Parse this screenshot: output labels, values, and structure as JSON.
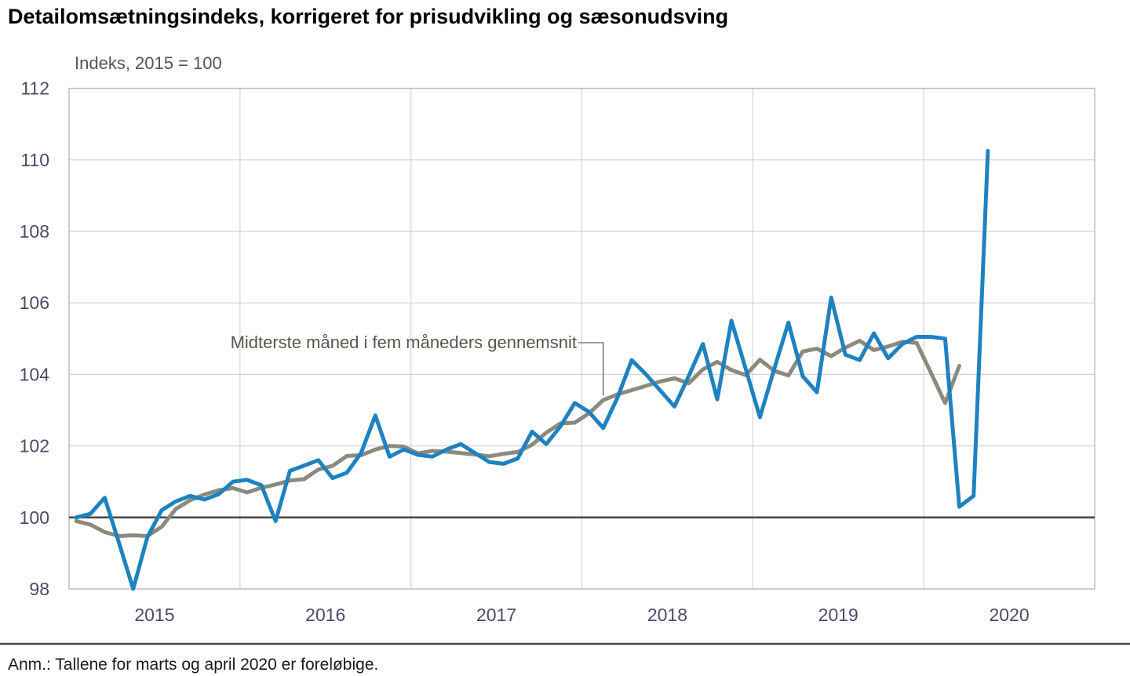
{
  "title": "Detailomsætningsindeks, korrigeret for prisudvikling og sæsonudsving",
  "y_axis_label": "Indeks, 2015 = 100",
  "annotation": {
    "label": "Midterste måned i fem måneders gennemsnit"
  },
  "footer_note": "Anm.: Tallene for marts og april 2020 er foreløbige.",
  "colors": {
    "monthly_line": "#1f82c0",
    "average_line": "#8a8a7f",
    "grid": "#d4d4d4",
    "axis_frame": "#b9b9b9",
    "baseline_100": "#4a4a4a",
    "tick_text": "#4a4b66",
    "subtitle_text": "#57554b",
    "separator": "#4a4a4a",
    "pointer": "#7d7d74"
  },
  "chart_data": {
    "type": "line",
    "title": "Detailomsætningsindeks, korrigeret for prisudvikling og sæsonudsving",
    "subtitle": "Indeks, 2015 = 100",
    "xlabel": "",
    "ylabel": "Indeks, 2015 = 100",
    "ylim": [
      98,
      112
    ],
    "grid": true,
    "legend_position": "inline-annotation",
    "x_tick_labels": [
      "2015",
      "2016",
      "2017",
      "2018",
      "2019",
      "2020"
    ],
    "y_tick_labels": [
      98,
      100,
      102,
      104,
      106,
      108,
      110,
      112
    ],
    "baseline": 100,
    "x_axis_span_months": 72,
    "months": [
      "2015-01",
      "2015-02",
      "2015-03",
      "2015-04",
      "2015-05",
      "2015-06",
      "2015-07",
      "2015-08",
      "2015-09",
      "2015-10",
      "2015-11",
      "2015-12",
      "2016-01",
      "2016-02",
      "2016-03",
      "2016-04",
      "2016-05",
      "2016-06",
      "2016-07",
      "2016-08",
      "2016-09",
      "2016-10",
      "2016-11",
      "2016-12",
      "2017-01",
      "2017-02",
      "2017-03",
      "2017-04",
      "2017-05",
      "2017-06",
      "2017-07",
      "2017-08",
      "2017-09",
      "2017-10",
      "2017-11",
      "2017-12",
      "2018-01",
      "2018-02",
      "2018-03",
      "2018-04",
      "2018-05",
      "2018-06",
      "2018-07",
      "2018-08",
      "2018-09",
      "2018-10",
      "2018-11",
      "2018-12",
      "2019-01",
      "2019-02",
      "2019-03",
      "2019-04",
      "2019-05",
      "2019-06",
      "2019-07",
      "2019-08",
      "2019-09",
      "2019-10",
      "2019-11",
      "2019-12",
      "2020-01",
      "2020-02",
      "2020-03",
      "2020-04",
      "2020-05"
    ],
    "series": [
      {
        "name": "Detailomsætningsindeks, korrigeret for prisudvikling og sæsonudsving (måned)",
        "color": "#1f82c0",
        "values": [
          100.0,
          100.1,
          100.55,
          99.3,
          98.0,
          99.45,
          100.2,
          100.45,
          100.6,
          100.5,
          100.65,
          101.0,
          101.05,
          100.9,
          99.9,
          101.3,
          101.45,
          101.6,
          101.1,
          101.25,
          101.8,
          102.85,
          101.7,
          101.9,
          101.75,
          101.7,
          101.9,
          102.05,
          101.8,
          101.55,
          101.5,
          101.65,
          102.4,
          102.05,
          102.55,
          103.2,
          102.95,
          102.5,
          103.35,
          104.4,
          104.0,
          103.55,
          103.1,
          103.95,
          104.85,
          103.3,
          105.5,
          104.15,
          102.8,
          104.15,
          105.45,
          103.95,
          103.5,
          106.15,
          104.55,
          104.4,
          105.15,
          104.45,
          104.85,
          105.05,
          105.05,
          105.0,
          100.3,
          100.6,
          110.25
        ]
      },
      {
        "name": "Midterste måned i fem måneders gennemsnit",
        "color": "#8a8a7f",
        "values": [
          99.9,
          99.8,
          99.59,
          99.48,
          99.5,
          99.48,
          99.74,
          100.24,
          100.48,
          100.64,
          100.76,
          100.82,
          100.7,
          100.83,
          100.92,
          101.03,
          101.07,
          101.34,
          101.44,
          101.72,
          101.74,
          101.9,
          102.0,
          101.98,
          101.79,
          101.86,
          101.84,
          101.8,
          101.76,
          101.71,
          101.78,
          101.83,
          102.03,
          102.37,
          102.63,
          102.65,
          102.91,
          103.28,
          103.44,
          103.56,
          103.68,
          103.8,
          103.89,
          103.75,
          104.14,
          104.35,
          104.12,
          103.98,
          104.41,
          104.1,
          103.97,
          104.64,
          104.72,
          104.51,
          104.75,
          104.94,
          104.68,
          104.78,
          104.91,
          104.88,
          104.05,
          103.2,
          104.24,
          null,
          null
        ]
      }
    ],
    "annotation_pointer": {
      "target_month_index": 37,
      "elbow_y": 437,
      "text_end_x": 737
    }
  }
}
